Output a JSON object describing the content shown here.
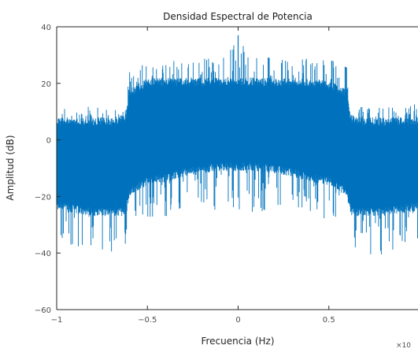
{
  "chart_data": {
    "type": "line",
    "title": "Densidad Espectral de Potencia",
    "xlabel": "Frecuencia (Hz)",
    "ylabel": "Amplitud (dB)",
    "xlim": [
      -1,
      1
    ],
    "ylim": [
      -60,
      40
    ],
    "x_exponent_label": "×10",
    "xticks": [
      -1,
      -0.5,
      0,
      0.5
    ],
    "xtick_labels": [
      "−1",
      "−0.5",
      "0",
      "0.5"
    ],
    "yticks": [
      40,
      20,
      0,
      -20,
      -40,
      -60
    ],
    "ytick_labels": [
      "40",
      "20",
      "0",
      "−20",
      "−40",
      "−60"
    ],
    "grid": false,
    "series": [
      {
        "color": "#0072bd",
        "x": [
          -1.0,
          -0.9,
          -0.8,
          -0.7,
          -0.62,
          -0.6,
          -0.5,
          -0.4,
          -0.3,
          -0.2,
          -0.1,
          0.0,
          0.1,
          0.2,
          0.3,
          0.4,
          0.5,
          0.6,
          0.62,
          0.7,
          0.8,
          0.9,
          1.0
        ],
        "upper": [
          8,
          8,
          8,
          8,
          9,
          18,
          22,
          22,
          22,
          22,
          22,
          22,
          22,
          22,
          22,
          22,
          21,
          18,
          9,
          8,
          8,
          8,
          8
        ],
        "lower": [
          -25,
          -26,
          -27,
          -27,
          -27,
          -20,
          -16,
          -15,
          -13,
          -12,
          -11,
          -11,
          -11,
          -12,
          -13,
          -15,
          -16,
          -20,
          -27,
          -27,
          -27,
          -26,
          -25
        ],
        "upper_peaks": [
          13,
          12,
          12,
          12,
          14,
          26,
          29,
          29,
          29,
          29,
          30,
          37,
          30,
          29,
          29,
          29,
          29,
          26,
          14,
          12,
          12,
          12,
          13
        ],
        "lower_peaks": [
          -40,
          -38,
          -42,
          -40,
          -38,
          -30,
          -28,
          -28,
          -26,
          -24,
          -26,
          -26,
          -26,
          -24,
          -26,
          -28,
          -28,
          -30,
          -38,
          -40,
          -42,
          -38,
          -40
        ]
      }
    ]
  }
}
